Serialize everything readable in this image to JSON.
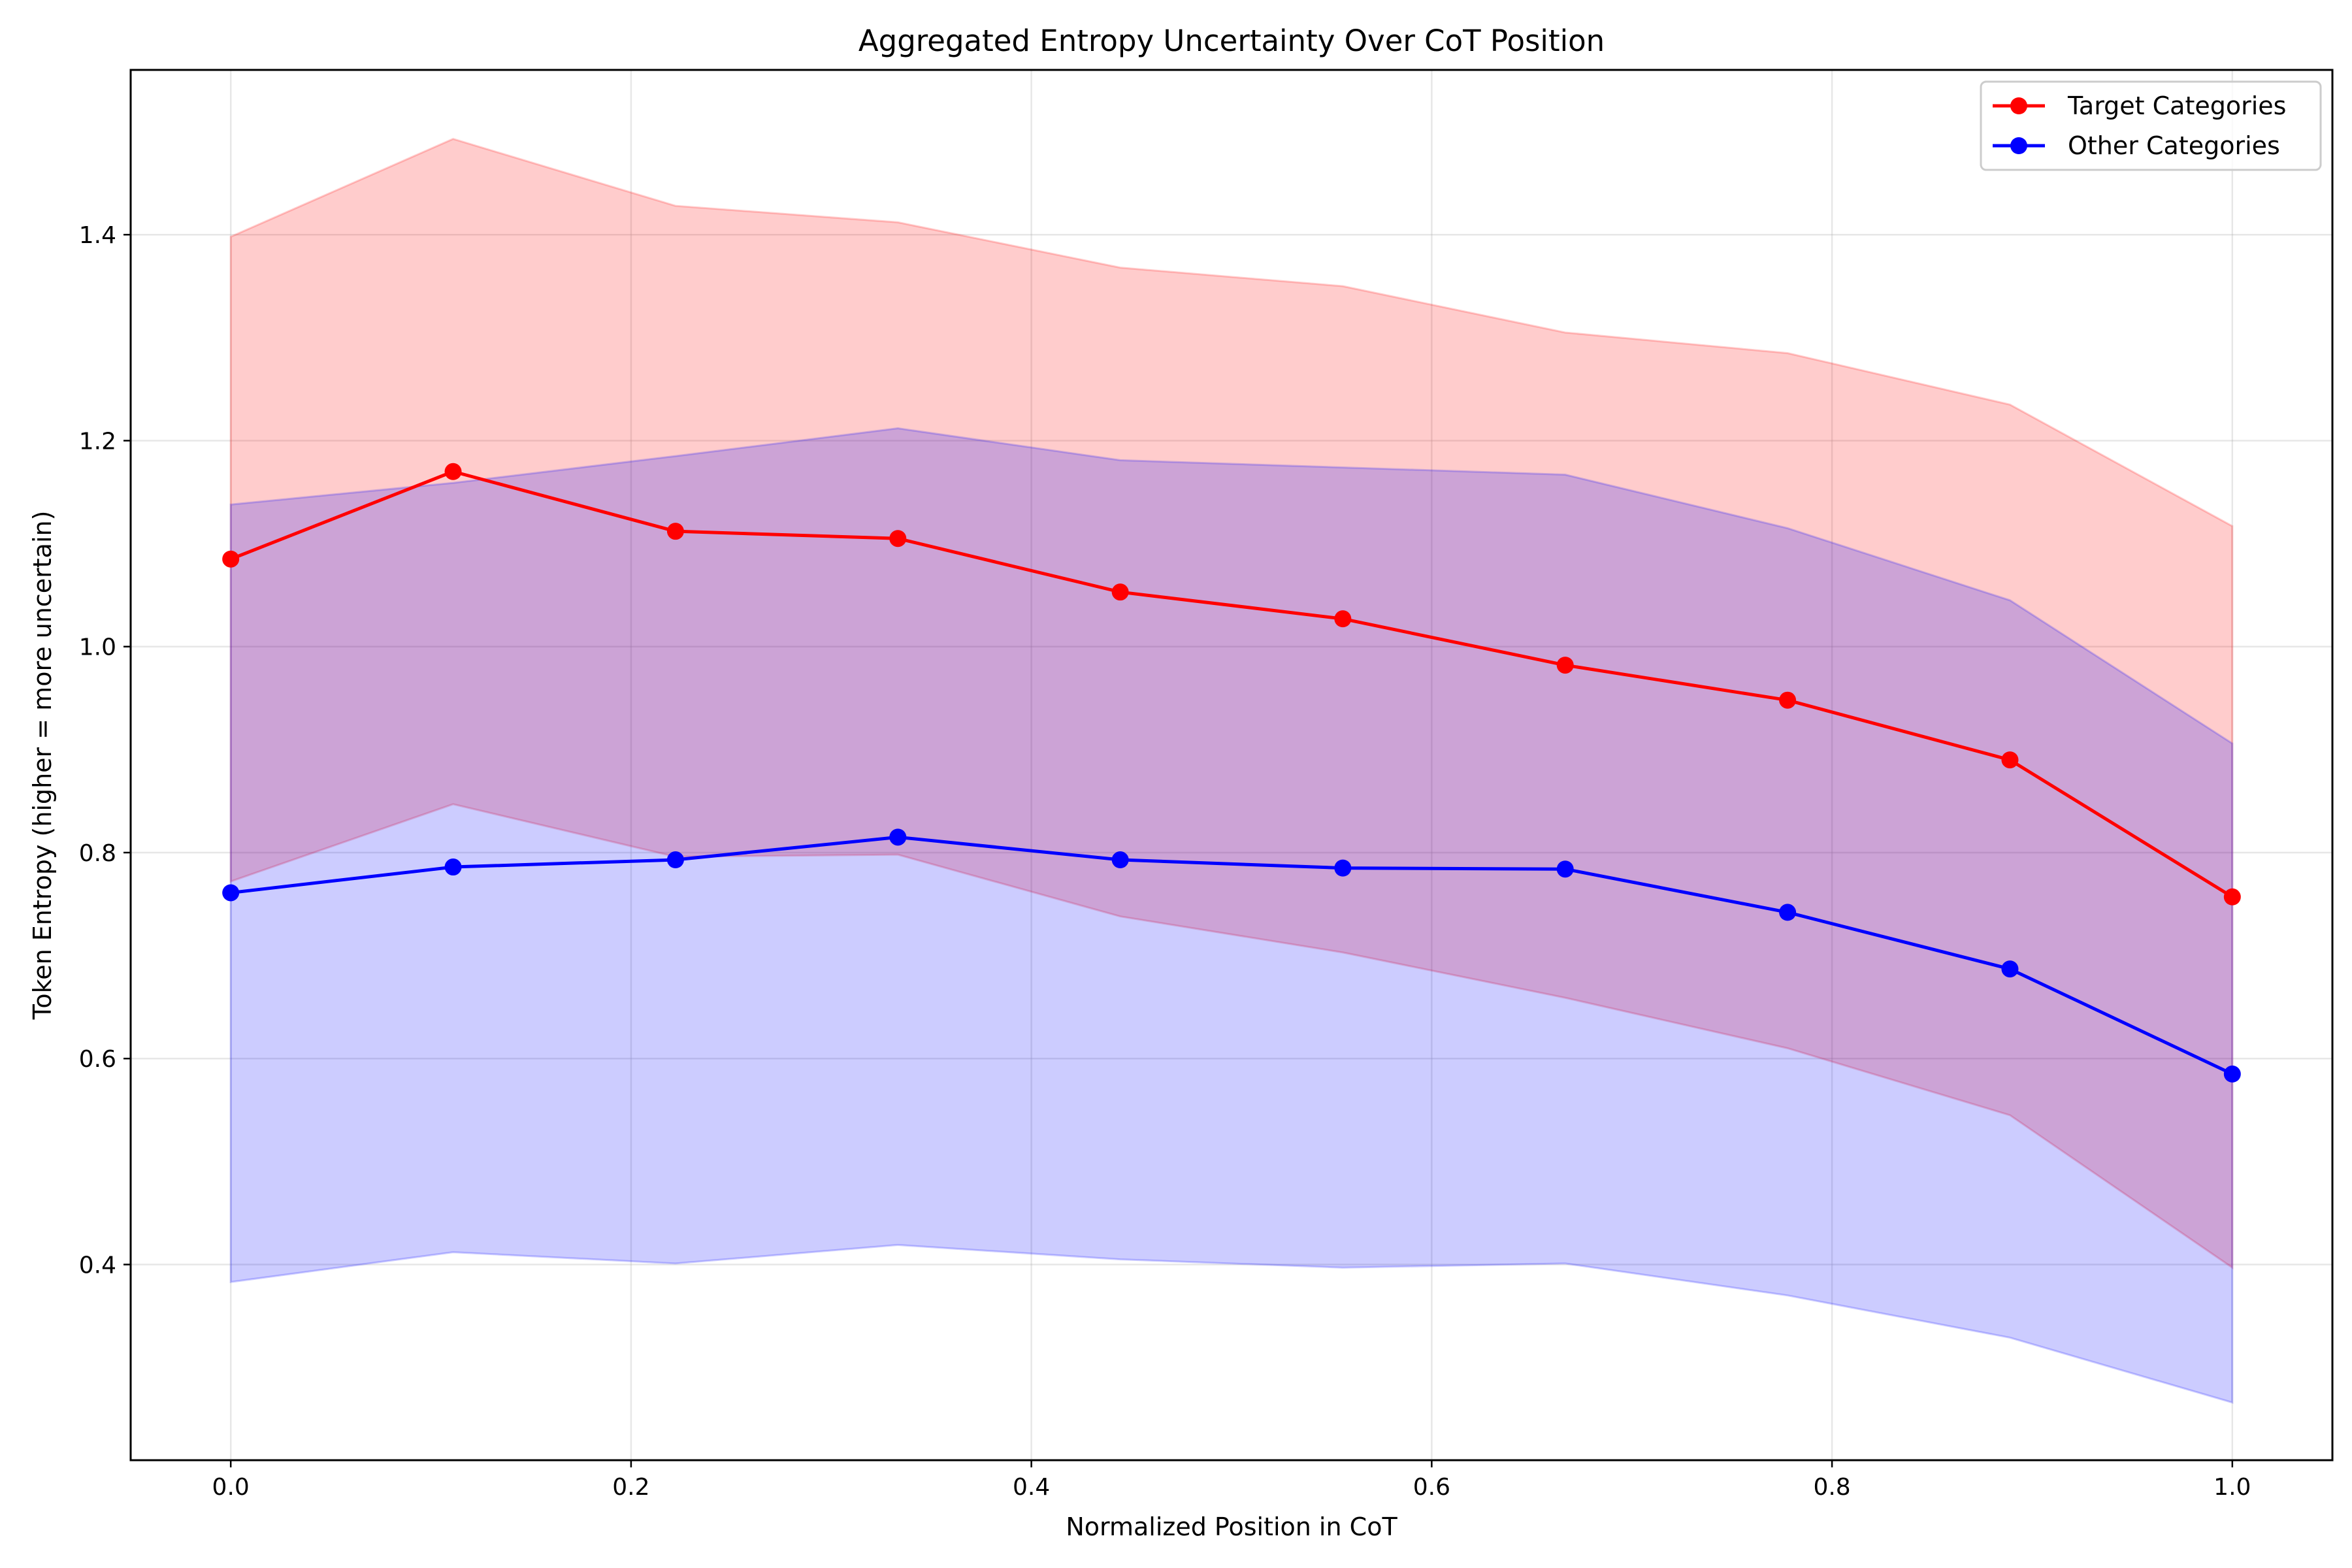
{
  "chart_data": {
    "type": "line",
    "title": "Aggregated Entropy Uncertainty Over CoT Position",
    "xlabel": "Normalized Position in CoT",
    "ylabel": "Token Entropy (higher = more uncertain)",
    "xlim": [
      -0.05,
      1.05
    ],
    "ylim": [
      0.21,
      1.56
    ],
    "xticks": [
      0.0,
      0.2,
      0.4,
      0.6,
      0.8,
      1.0
    ],
    "xtick_labels": [
      "0.0",
      "0.2",
      "0.4",
      "0.6",
      "0.8",
      "1.0"
    ],
    "yticks": [
      0.4,
      0.6,
      0.8,
      1.0,
      1.2,
      1.4
    ],
    "ytick_labels": [
      "0.4",
      "0.6",
      "0.8",
      "1.0",
      "1.2",
      "1.4"
    ],
    "grid": true,
    "legend_position": "top-right",
    "x": [
      0.0,
      0.1111,
      0.2222,
      0.3333,
      0.4444,
      0.5556,
      0.6667,
      0.7778,
      0.8889,
      1.0
    ],
    "series": [
      {
        "name": "Target Categories",
        "color": "#ff0000",
        "band_color": "#ff0000",
        "values": [
          1.085,
          1.17,
          1.112,
          1.105,
          1.053,
          1.027,
          0.982,
          0.948,
          0.89,
          0.757
        ],
        "upper": [
          1.398,
          1.493,
          1.428,
          1.412,
          1.368,
          1.35,
          1.305,
          1.285,
          1.235,
          1.117
        ],
        "lower": [
          0.772,
          0.847,
          0.796,
          0.798,
          0.738,
          0.703,
          0.659,
          0.61,
          0.545,
          0.397
        ]
      },
      {
        "name": "Other Categories",
        "color": "#0000ff",
        "band_color": "#0000ff",
        "values": [
          0.761,
          0.786,
          0.793,
          0.815,
          0.793,
          0.785,
          0.784,
          0.742,
          0.687,
          0.585
        ],
        "upper": [
          1.138,
          1.159,
          1.185,
          1.212,
          1.181,
          1.174,
          1.167,
          1.115,
          1.045,
          0.906
        ],
        "lower": [
          0.383,
          0.412,
          0.401,
          0.419,
          0.405,
          0.397,
          0.401,
          0.37,
          0.329,
          0.266
        ]
      }
    ]
  }
}
